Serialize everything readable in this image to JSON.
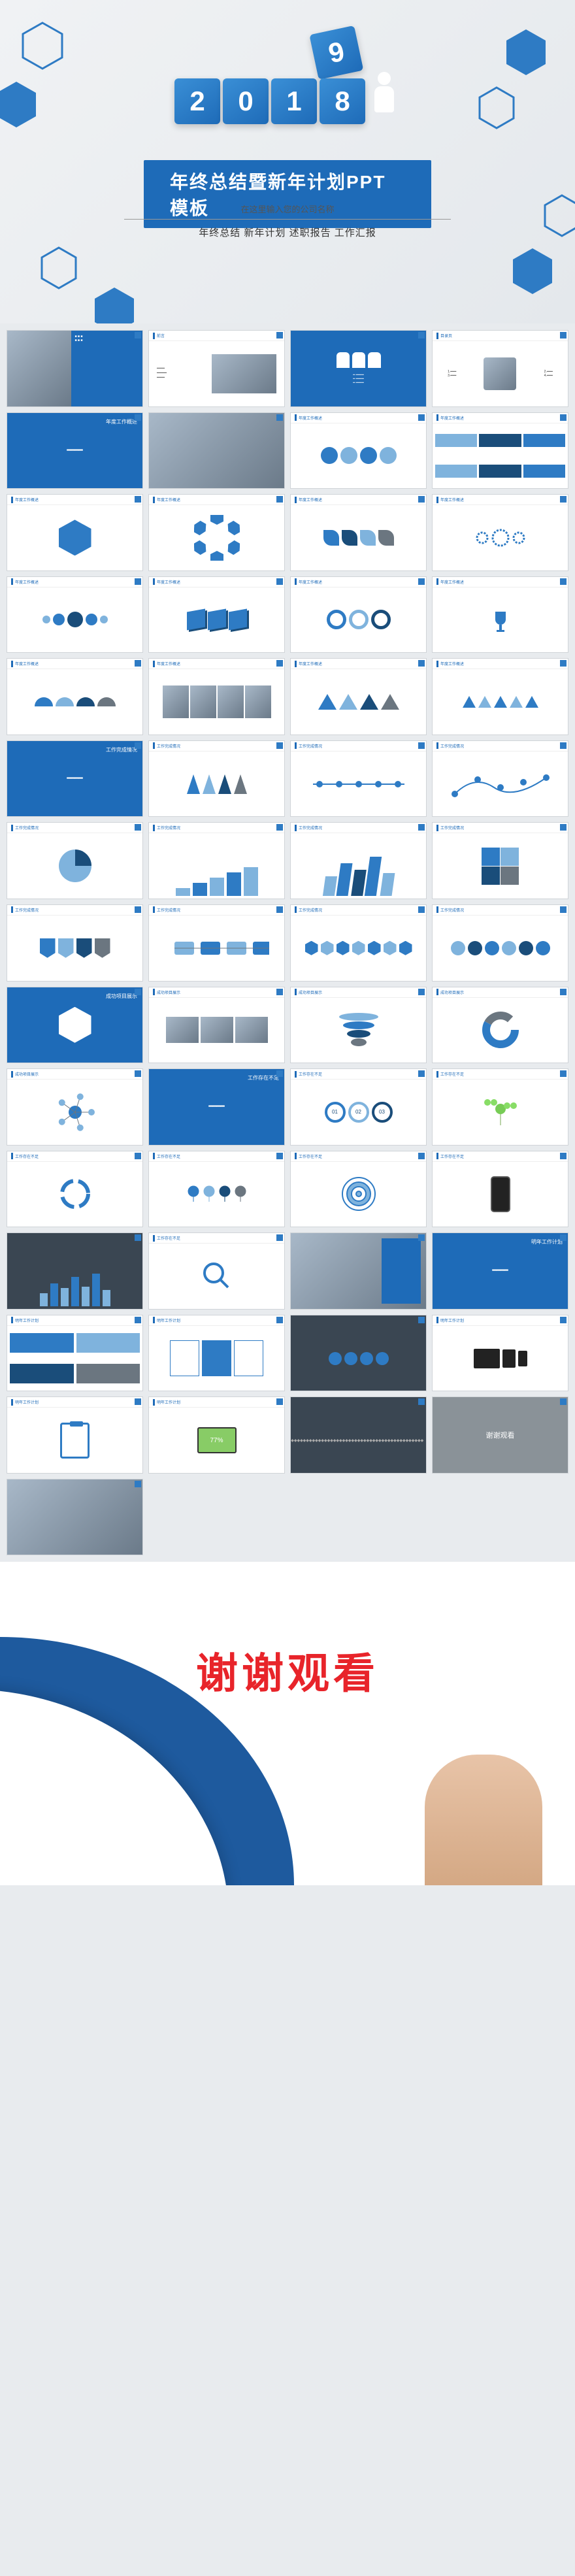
{
  "cover": {
    "year_digits": [
      "2",
      "0",
      "1",
      "9",
      "8"
    ],
    "title": "年终总结暨新年计划PPT模板",
    "subtitle": "在这里输入您的公司名称",
    "tags": "年终总结  新年计划  述职报告  工作汇报"
  },
  "colors": {
    "primary": "#1e6bb8",
    "secondary": "#2e7bc4",
    "light": "#7fb3dd",
    "dark": "#1a4d7a",
    "grey": "#6b7680",
    "bg": "#e8ebee",
    "accent_red": "#e8242a"
  },
  "slides": [
    {
      "id": 1,
      "bg": "grey",
      "title": "",
      "type": "photo-split"
    },
    {
      "id": 2,
      "bg": "white",
      "title": "前言",
      "type": "text-photo"
    },
    {
      "id": 3,
      "bg": "blue",
      "title": "过渡页",
      "type": "transition"
    },
    {
      "id": 4,
      "bg": "white",
      "title": "目录页",
      "type": "toc"
    },
    {
      "id": 5,
      "bg": "blue",
      "title": "年度工作概述",
      "type": "section"
    },
    {
      "id": 6,
      "bg": "white",
      "title": "",
      "type": "photo-full"
    },
    {
      "id": 7,
      "bg": "white",
      "title": "年度工作概述",
      "type": "circles-4"
    },
    {
      "id": 8,
      "bg": "white",
      "title": "年度工作概述",
      "type": "grid-6"
    },
    {
      "id": 9,
      "bg": "white",
      "title": "年度工作概述",
      "type": "hexagon"
    },
    {
      "id": 10,
      "bg": "white",
      "title": "年度工作概述",
      "type": "hex-ring"
    },
    {
      "id": 11,
      "bg": "white",
      "title": "年度工作概述",
      "type": "leaf-shapes"
    },
    {
      "id": 12,
      "bg": "white",
      "title": "年度工作概述",
      "type": "gears"
    },
    {
      "id": 13,
      "bg": "white",
      "title": "年度工作概述",
      "type": "bubbles"
    },
    {
      "id": 14,
      "bg": "white",
      "title": "年度工作概述",
      "type": "cubes-3d"
    },
    {
      "id": 15,
      "bg": "white",
      "title": "年度工作概述",
      "type": "rings-3"
    },
    {
      "id": 16,
      "bg": "white",
      "title": "年度工作概述",
      "type": "trophy"
    },
    {
      "id": 17,
      "bg": "white",
      "title": "年度工作概述",
      "type": "half-circles"
    },
    {
      "id": 18,
      "bg": "white",
      "title": "年度工作概述",
      "type": "photo-row"
    },
    {
      "id": 19,
      "bg": "white",
      "title": "年度工作概述",
      "type": "triangles"
    },
    {
      "id": 20,
      "bg": "white",
      "title": "年度工作概述",
      "type": "tri-row"
    },
    {
      "id": 21,
      "bg": "blue",
      "title": "工作完成情况",
      "type": "section"
    },
    {
      "id": 22,
      "bg": "white",
      "title": "工作完成情况",
      "type": "arrows-up"
    },
    {
      "id": 23,
      "bg": "white",
      "title": "工作完成情况",
      "type": "timeline"
    },
    {
      "id": 24,
      "bg": "white",
      "title": "工作完成情况",
      "type": "dots-line"
    },
    {
      "id": 25,
      "bg": "white",
      "title": "工作完成情况",
      "type": "circle-split"
    },
    {
      "id": 26,
      "bg": "white",
      "title": "工作完成情况",
      "type": "stairs"
    },
    {
      "id": 27,
      "bg": "white",
      "title": "工作完成情况",
      "type": "bars-3d"
    },
    {
      "id": 28,
      "bg": "white",
      "title": "工作完成情况",
      "type": "puzzle"
    },
    {
      "id": 29,
      "bg": "white",
      "title": "工作完成情况",
      "type": "badges"
    },
    {
      "id": 30,
      "bg": "white",
      "title": "工作完成情况",
      "type": "flow"
    },
    {
      "id": 31,
      "bg": "white",
      "title": "工作完成情况",
      "type": "hex-grid"
    },
    {
      "id": 32,
      "bg": "white",
      "title": "工作完成情况",
      "type": "circles-grid"
    },
    {
      "id": 33,
      "bg": "blue",
      "title": "成功项目展示",
      "type": "section-hex"
    },
    {
      "id": 34,
      "bg": "white",
      "title": "成功项目展示",
      "type": "photo-3"
    },
    {
      "id": 35,
      "bg": "white",
      "title": "成功项目展示",
      "type": "funnel"
    },
    {
      "id": 36,
      "bg": "white",
      "title": "成功项目展示",
      "type": "donut"
    },
    {
      "id": 37,
      "bg": "white",
      "title": "成功项目展示",
      "type": "network"
    },
    {
      "id": 38,
      "bg": "blue",
      "title": "工作存在不足",
      "type": "section"
    },
    {
      "id": 39,
      "bg": "white",
      "title": "工作存在不足",
      "type": "ring-nums"
    },
    {
      "id": 40,
      "bg": "white",
      "title": "工作存在不足",
      "type": "tree"
    },
    {
      "id": 41,
      "bg": "white",
      "title": "工作存在不足",
      "type": "circle-arrows"
    },
    {
      "id": 42,
      "bg": "white",
      "title": "工作存在不足",
      "type": "pins"
    },
    {
      "id": 43,
      "bg": "white",
      "title": "工作存在不足",
      "type": "target"
    },
    {
      "id": 44,
      "bg": "white",
      "title": "工作存在不足",
      "type": "phone"
    },
    {
      "id": 45,
      "bg": "dark",
      "title": "",
      "type": "bar-chart"
    },
    {
      "id": 46,
      "bg": "white",
      "title": "工作存在不足",
      "type": "magnify"
    },
    {
      "id": 47,
      "bg": "white",
      "title": "",
      "type": "photo-wide"
    },
    {
      "id": 48,
      "bg": "blue",
      "title": "明年工作计划",
      "type": "section"
    },
    {
      "id": 49,
      "bg": "white",
      "title": "明年工作计划",
      "type": "blocks-4"
    },
    {
      "id": 50,
      "bg": "white",
      "title": "明年工作计划",
      "type": "panels"
    },
    {
      "id": 51,
      "bg": "dark",
      "title": "",
      "type": "stats"
    },
    {
      "id": 52,
      "bg": "white",
      "title": "明年工作计划",
      "type": "devices"
    },
    {
      "id": 53,
      "bg": "white",
      "title": "明年工作计划",
      "type": "clipboard"
    },
    {
      "id": 54,
      "bg": "white",
      "title": "明年工作计划",
      "type": "laptop-77"
    },
    {
      "id": 55,
      "bg": "dark",
      "title": "输入名称",
      "type": "icons"
    },
    {
      "id": 56,
      "bg": "grey",
      "title": "谢谢观看",
      "type": "thanks-small"
    },
    {
      "id": 57,
      "bg": "white",
      "title": "",
      "type": "photo-team"
    }
  ],
  "closing": {
    "text": "谢谢观看"
  }
}
